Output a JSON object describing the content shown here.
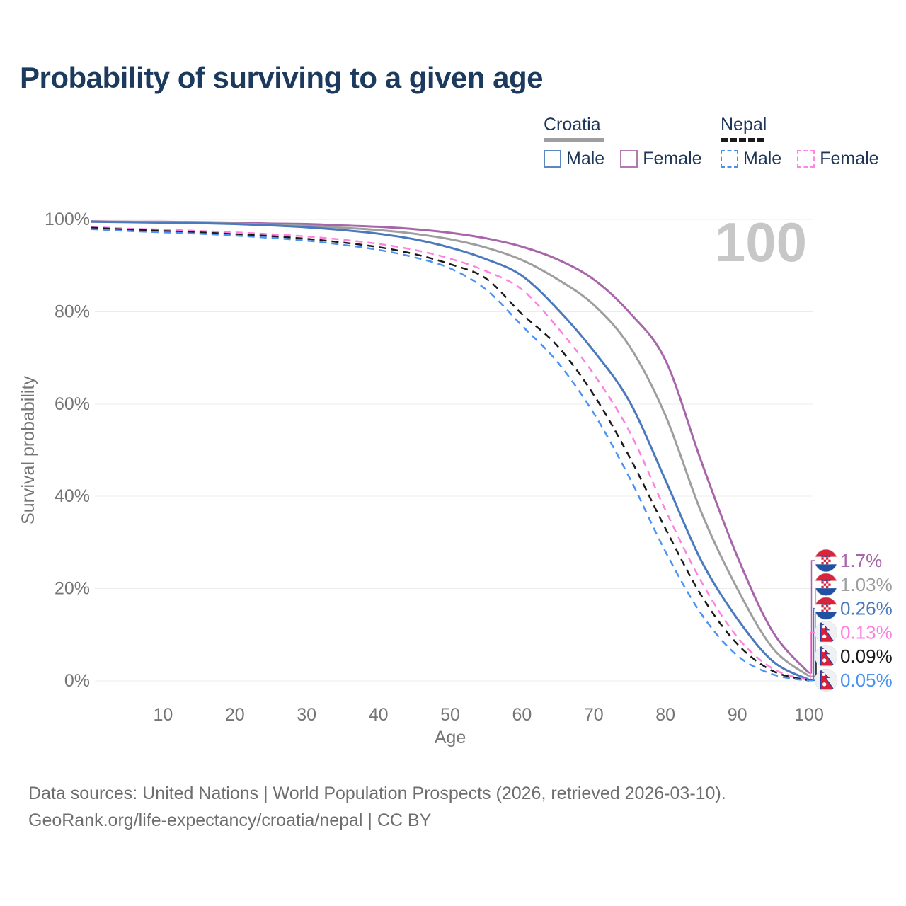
{
  "title": "Probability of surviving to a given age",
  "watermark": "100",
  "legend": {
    "groups": [
      {
        "label": "Croatia",
        "line_style": "solid",
        "line_color": "#9e9e9e",
        "items": [
          {
            "label": "Male",
            "color": "#5b87c5",
            "style": "solid"
          },
          {
            "label": "Female",
            "color": "#b678b2",
            "style": "solid"
          }
        ]
      },
      {
        "label": "Nepal",
        "line_style": "dashed",
        "line_color": "#1a1a1a",
        "items": [
          {
            "label": "Male",
            "color": "#4a90f0",
            "style": "dashed"
          },
          {
            "label": "Female",
            "color": "#ff85e0",
            "style": "dashed"
          }
        ]
      }
    ]
  },
  "chart_data": {
    "type": "line",
    "title": "Probability of surviving to a given age",
    "xlabel": "Age",
    "ylabel": "Survival probability",
    "xlim": [
      0,
      100
    ],
    "ylim": [
      0,
      100
    ],
    "grid": true,
    "legend_position": "top-right",
    "x_ticks": [
      10,
      20,
      30,
      40,
      50,
      60,
      70,
      80,
      90,
      100
    ],
    "y_ticks": [
      {
        "value": 0,
        "label": "0%"
      },
      {
        "value": 20,
        "label": "20%"
      },
      {
        "value": 40,
        "label": "40%"
      },
      {
        "value": 60,
        "label": "60%"
      },
      {
        "value": 80,
        "label": "80%"
      },
      {
        "value": 100,
        "label": "100%"
      }
    ],
    "ages": [
      0,
      5,
      10,
      15,
      20,
      25,
      30,
      35,
      40,
      45,
      50,
      55,
      60,
      65,
      70,
      75,
      80,
      85,
      90,
      95,
      100
    ],
    "series": [
      {
        "name": "Croatia Female",
        "country": "Croatia",
        "sex": "Female",
        "flag": "croatia",
        "color": "#a766a9",
        "dash": "solid",
        "end_label": "1.7%",
        "values": [
          99.6,
          99.5,
          99.5,
          99.4,
          99.3,
          99.1,
          99.0,
          98.7,
          98.4,
          97.9,
          97.1,
          95.9,
          94.1,
          91.3,
          87.0,
          79.8,
          69.5,
          47.5,
          27.0,
          10.5,
          1.7
        ]
      },
      {
        "name": "Croatia",
        "country": "Croatia",
        "sex": "Both",
        "flag": "croatia",
        "color": "#9e9e9e",
        "dash": "solid",
        "end_label": "1.03%",
        "values": [
          99.5,
          99.5,
          99.4,
          99.3,
          99.1,
          98.9,
          98.6,
          98.2,
          97.7,
          96.9,
          95.7,
          93.9,
          91.2,
          87.0,
          81.5,
          72.5,
          57.5,
          36.5,
          20.0,
          7.0,
          1.03
        ]
      },
      {
        "name": "Croatia Male",
        "country": "Croatia",
        "sex": "Male",
        "flag": "croatia",
        "color": "#4a79bd",
        "dash": "solid",
        "end_label": "0.26%",
        "values": [
          99.5,
          99.4,
          99.3,
          99.2,
          99.0,
          98.7,
          98.3,
          97.7,
          96.9,
          95.7,
          93.9,
          91.4,
          87.8,
          80.5,
          71.5,
          60.5,
          43.5,
          26.0,
          13.5,
          4.2,
          0.26
        ]
      },
      {
        "name": "Nepal Female",
        "country": "Nepal",
        "sex": "Female",
        "flag": "nepal",
        "color": "#ff80df",
        "dash": "dashed",
        "end_label": "0.13%",
        "values": [
          98.4,
          98.0,
          97.8,
          97.5,
          97.2,
          96.8,
          96.3,
          95.6,
          94.7,
          93.4,
          91.5,
          88.8,
          84.8,
          76.5,
          66.5,
          54.0,
          37.0,
          21.5,
          9.5,
          2.6,
          0.13
        ]
      },
      {
        "name": "Nepal",
        "country": "Nepal",
        "sex": "Both",
        "flag": "nepal",
        "color": "#1a1a1a",
        "dash": "dashed",
        "end_label": "0.09%",
        "values": [
          98.2,
          97.8,
          97.5,
          97.2,
          96.8,
          96.4,
          95.8,
          95.0,
          94.0,
          92.5,
          90.3,
          87.2,
          79.5,
          72.5,
          62.0,
          48.5,
          33.0,
          18.5,
          8.0,
          2.1,
          0.09
        ]
      },
      {
        "name": "Nepal Male",
        "country": "Nepal",
        "sex": "Male",
        "flag": "nepal",
        "color": "#4a93f5",
        "dash": "dashed",
        "end_label": "0.05%",
        "values": [
          97.9,
          97.5,
          97.2,
          96.9,
          96.5,
          96.0,
          95.4,
          94.5,
          93.4,
          91.8,
          89.4,
          84.8,
          77.0,
          69.0,
          58.0,
          44.0,
          28.0,
          14.5,
          5.5,
          1.4,
          0.05
        ]
      }
    ]
  },
  "footer": {
    "line1": "Data sources: United Nations | World Population Prospects (2026, retrieved 2026-03-10).",
    "line2": "GeoRank.org/life-expectancy/croatia/nepal | CC BY"
  }
}
